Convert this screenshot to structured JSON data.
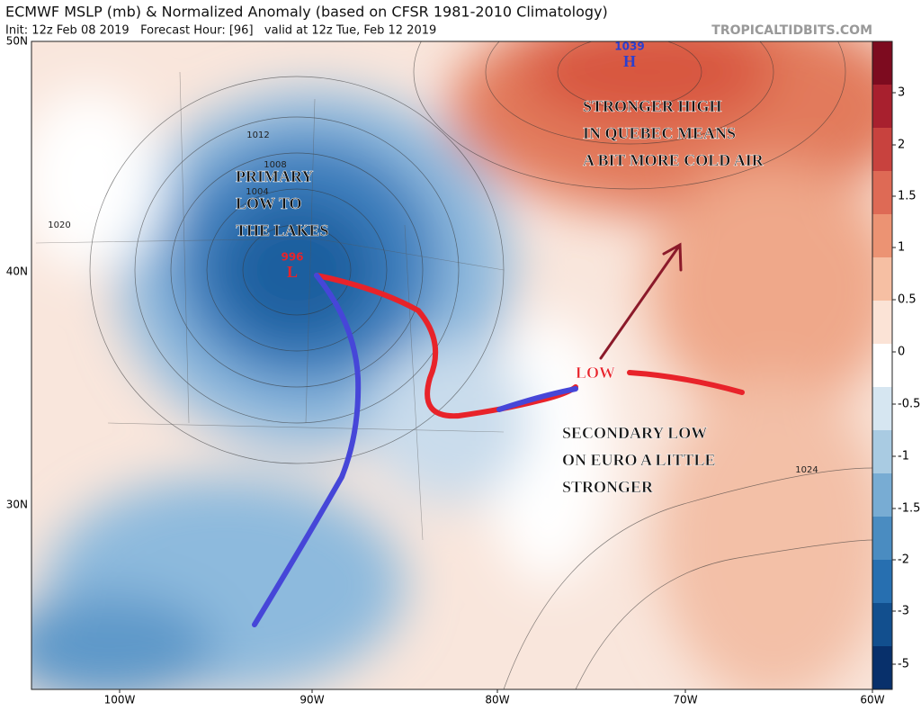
{
  "header": {
    "title": "ECMWF MSLP (mb) & Normalized Anomaly (based on CFSR 1981-2010 Climatology)",
    "subtitle": "Init: 12z Feb 08 2019   Forecast Hour: [96]   valid at 12z Tue, Feb 12 2019",
    "site": "TROPICALTIDBITS.COM"
  },
  "map": {
    "lat_labels": [
      "50N",
      "40N",
      "30N"
    ],
    "lon_labels": [
      "100W",
      "90W",
      "80W",
      "70W",
      "60W"
    ],
    "isobar_labels": [
      "1012",
      "1008",
      "1004",
      "1020",
      "1024"
    ],
    "centers": [
      {
        "value": "996",
        "symbol": "L"
      },
      {
        "value": "1039",
        "symbol": "H"
      }
    ],
    "annotations": [
      {
        "lines": [
          "PRIMARY",
          "LOW TO",
          "THE LAKES"
        ]
      },
      {
        "lines": [
          "STRONGER HIGH",
          "IN QUEBEC MEANS",
          "A BIT MORE COLD AIR"
        ]
      },
      {
        "lines": [
          "SECONDARY LOW",
          "ON EURO A LITTLE",
          "STRONGER"
        ]
      },
      {
        "lines": [
          "LOW"
        ]
      }
    ]
  },
  "colorbar": {
    "ticks": [
      "3",
      "2",
      "1.5",
      "1",
      "0.5",
      "0",
      "-0.5",
      "-1",
      "-1.5",
      "-2",
      "-3",
      "-5"
    ],
    "colors": [
      "#7d0b1f",
      "#a8202e",
      "#c8423e",
      "#de6a55",
      "#ec9373",
      "#f6bfa3",
      "#fbe3d6",
      "#ffffff",
      "#d6e6f1",
      "#a9cbe2",
      "#78acd3",
      "#4a8cc1",
      "#276fb0",
      "#124f8e",
      "#08306b"
    ]
  }
}
